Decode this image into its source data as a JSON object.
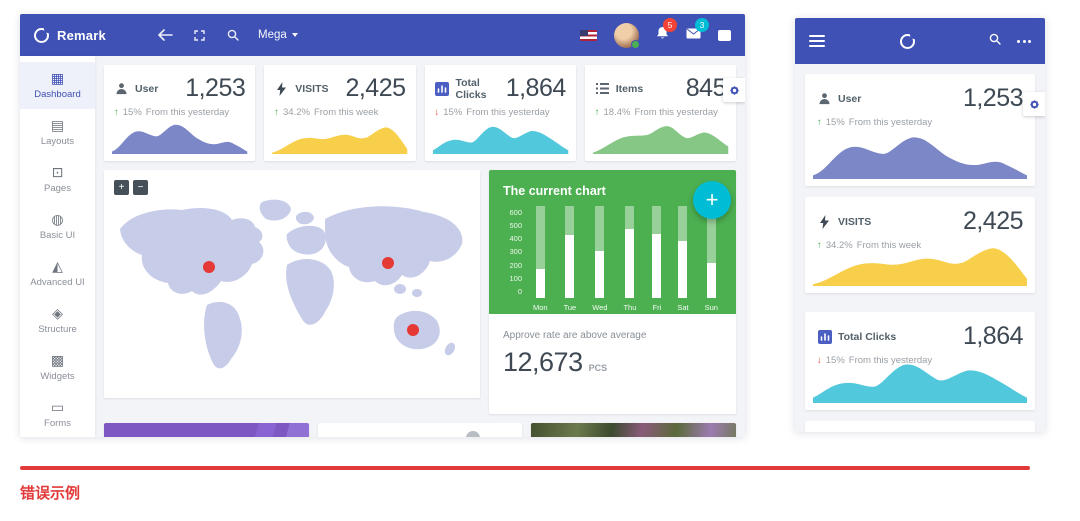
{
  "desktop": {
    "navbar": {
      "brand": "Remark",
      "menu_label": "Mega",
      "notification_count": "5",
      "message_count": "3"
    },
    "sidebar": {
      "items": [
        {
          "label": "Dashboard",
          "icon": "dashboard-icon",
          "active": true
        },
        {
          "label": "Layouts",
          "icon": "layouts-icon",
          "active": false
        },
        {
          "label": "Pages",
          "icon": "pages-icon",
          "active": false
        },
        {
          "label": "Basic UI",
          "icon": "basic-ui-icon",
          "active": false
        },
        {
          "label": "Advanced UI",
          "icon": "advanced-ui-icon",
          "active": false
        },
        {
          "label": "Structure",
          "icon": "structure-icon",
          "active": false
        },
        {
          "label": "Widgets",
          "icon": "widgets-icon",
          "active": false
        },
        {
          "label": "Forms",
          "icon": "forms-icon",
          "active": false
        },
        {
          "label": "",
          "icon": "table-grid-icon",
          "active": false
        }
      ]
    },
    "stat_cards": [
      {
        "label": "User",
        "icon": "user-icon",
        "value": "1,253",
        "arrow": "↑",
        "delta": "15%",
        "period": "From this yesterday",
        "color": "#7b87c6",
        "trend": "up"
      },
      {
        "label": "VISITS",
        "icon": "bolt-icon",
        "value": "2,425",
        "arrow": "↑",
        "delta": "34.2%",
        "period": "From this week",
        "color": "#f8cf4a",
        "trend": "up"
      },
      {
        "label": "Total Clicks",
        "icon": "bar-chart-icon",
        "value": "1,864",
        "arrow": "↓",
        "delta": "15%",
        "period": "From this yesterday",
        "color": "#52c8dd",
        "trend": "down"
      },
      {
        "label": "Items",
        "icon": "list-icon",
        "value": "845",
        "arrow": "↑",
        "delta": "18.4%",
        "period": "From this yesterday",
        "color": "#86c786",
        "trend": "up"
      }
    ],
    "map": {
      "zoom_in": "+",
      "zoom_out": "−",
      "marker_color": "#e53935"
    },
    "chart_card": {
      "title": "The current chart",
      "yticks": [
        "600",
        "500",
        "400",
        "300",
        "200",
        "100",
        "0"
      ],
      "categories": [
        "Mon",
        "Tue",
        "Wed",
        "Thu",
        "Fri",
        "Sat",
        "Sun"
      ],
      "values": [
        200,
        430,
        320,
        470,
        440,
        390,
        240
      ],
      "scale_max": 630,
      "footer_text": "Approve rate are above average",
      "footer_value": "12,673",
      "footer_unit": "PCS",
      "bg_color": "#4caf50",
      "fab_label": "+"
    }
  },
  "mobile": {
    "navbar": {
      "icons": [
        "menu-icon",
        "logo",
        "search-icon",
        "more-icon"
      ]
    }
  },
  "annotation": {
    "error_label": "错误示例"
  },
  "chart_data": {
    "type": "bar",
    "title": "The current chart",
    "categories": [
      "Mon",
      "Tue",
      "Wed",
      "Thu",
      "Fri",
      "Sat",
      "Sun"
    ],
    "values": [
      200,
      430,
      320,
      470,
      440,
      390,
      240
    ],
    "ylabel": "",
    "xlabel": "",
    "ylim": [
      0,
      630
    ],
    "yticks": [
      0,
      100,
      200,
      300,
      400,
      500,
      600
    ],
    "legend": false,
    "note": "white bars on green card; gray full-height tracks behind bars"
  }
}
